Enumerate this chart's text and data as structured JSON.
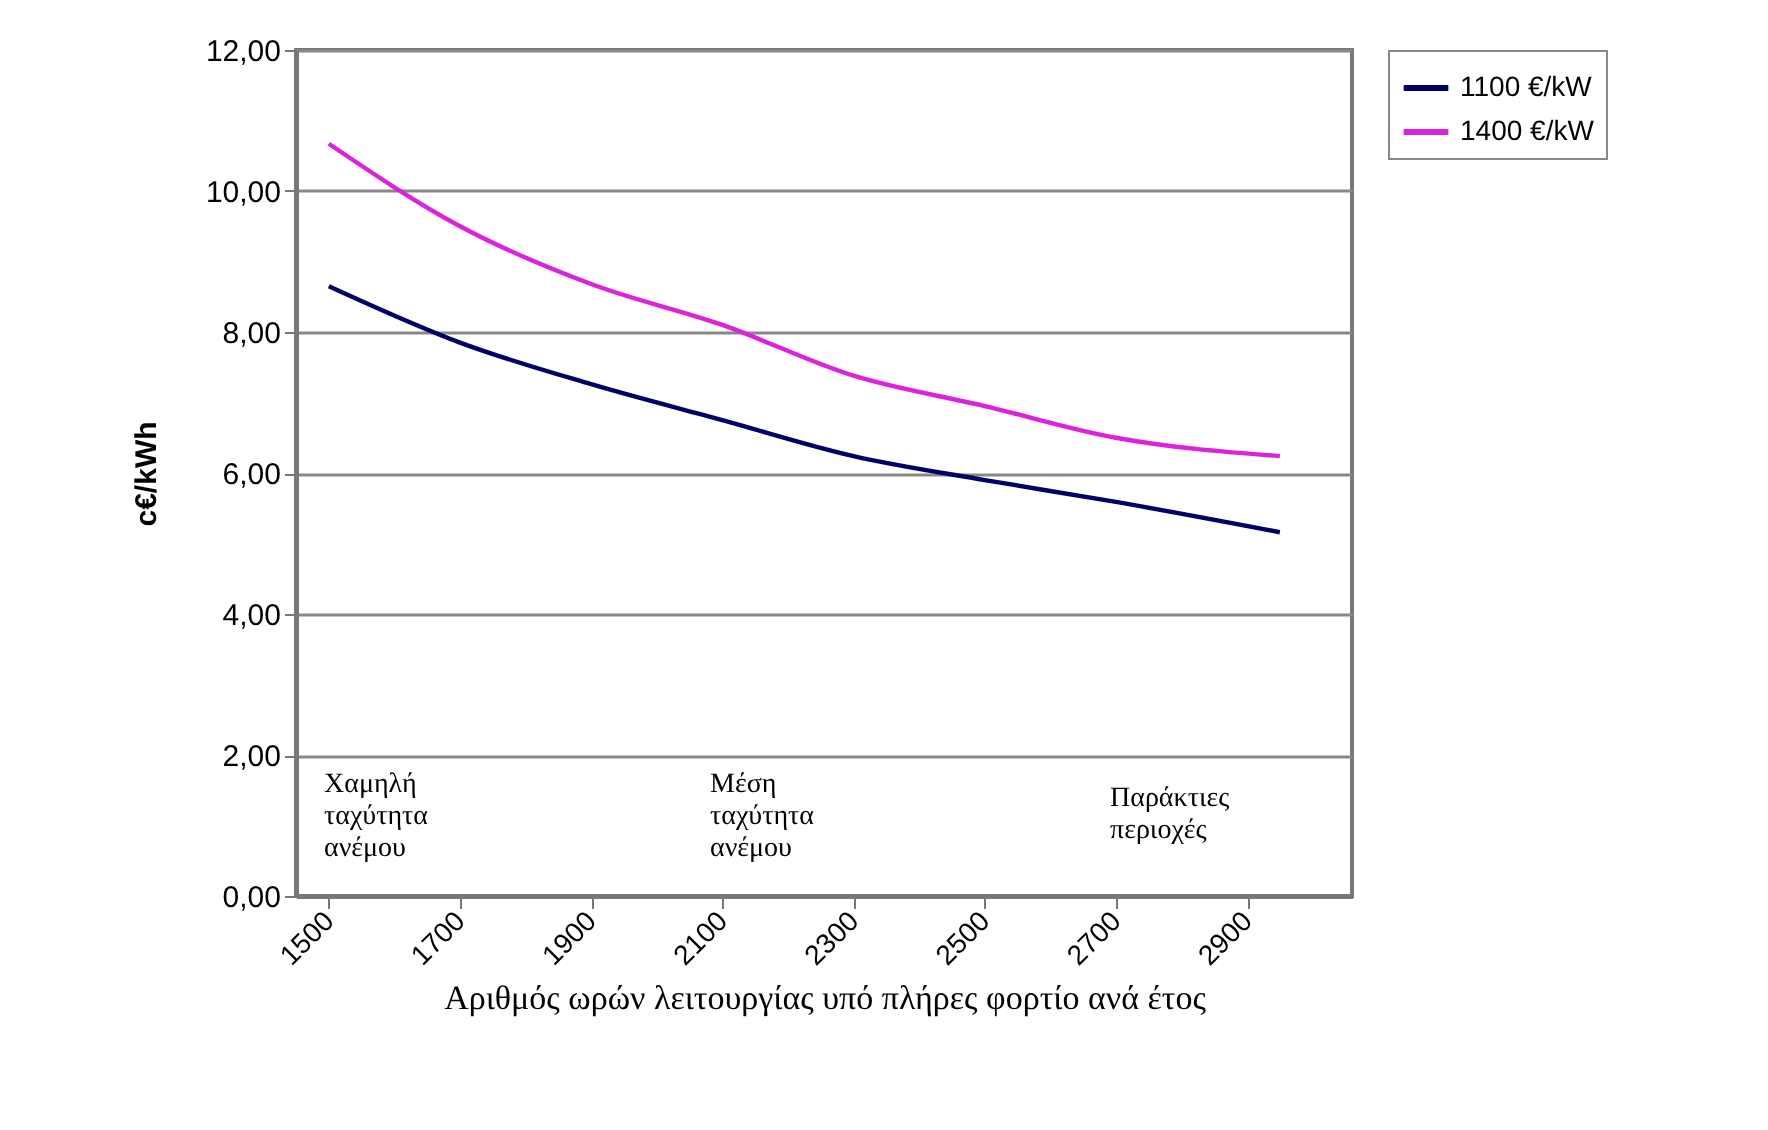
{
  "chart_data": {
    "type": "line",
    "xlabel": "Αριθμός ωρών λειτουργίας υπό  πλήρες φορτίο ανά έτος",
    "ylabel": "c€/kWh",
    "x": [
      1500,
      1700,
      1900,
      2100,
      2300,
      2500,
      2700,
      2950
    ],
    "series": [
      {
        "name": "1100 €/kW",
        "color": "#000066",
        "values": [
          8.65,
          7.85,
          7.26,
          6.75,
          6.24,
          5.9,
          5.59,
          5.16
        ]
      },
      {
        "name": "1400 €/kW",
        "color": "#dd22dd",
        "values": [
          10.67,
          9.5,
          8.68,
          8.1,
          7.38,
          6.95,
          6.5,
          6.24
        ]
      }
    ],
    "xlim": [
      1450,
      3060
    ],
    "xticks": [
      1500,
      1700,
      1900,
      2100,
      2300,
      2500,
      2700,
      2900
    ],
    "ylim": [
      0,
      12
    ],
    "yticks": [
      {
        "value": 0,
        "label": "0,00"
      },
      {
        "value": 2,
        "label": "2,00"
      },
      {
        "value": 4,
        "label": "4,00"
      },
      {
        "value": 6,
        "label": "6,00"
      },
      {
        "value": 8,
        "label": "8,00"
      },
      {
        "value": 10,
        "label": "10,00"
      },
      {
        "value": 12,
        "label": "12,00"
      }
    ],
    "annotations": [
      "Χαμηλή ταχύτητα ανέμου",
      "Μέση ταχύτητα ανέμου",
      "Παράκτιες περιοχές"
    ],
    "grid": "y",
    "legend": "right",
    "marker": "none",
    "line_style": "solid"
  }
}
